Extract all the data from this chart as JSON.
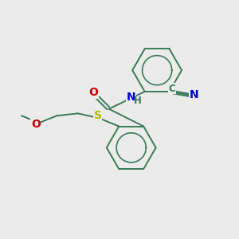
{
  "background_color": "#ebebeb",
  "bond_color": "#3a7a5a",
  "atom_colors": {
    "N": "#0000cc",
    "O": "#cc0000",
    "S": "#b8b800",
    "C": "#3a7a5a"
  },
  "figsize": [
    3.0,
    3.0
  ],
  "dpi": 100,
  "xlim": [
    0,
    10
  ],
  "ylim": [
    0,
    10
  ]
}
